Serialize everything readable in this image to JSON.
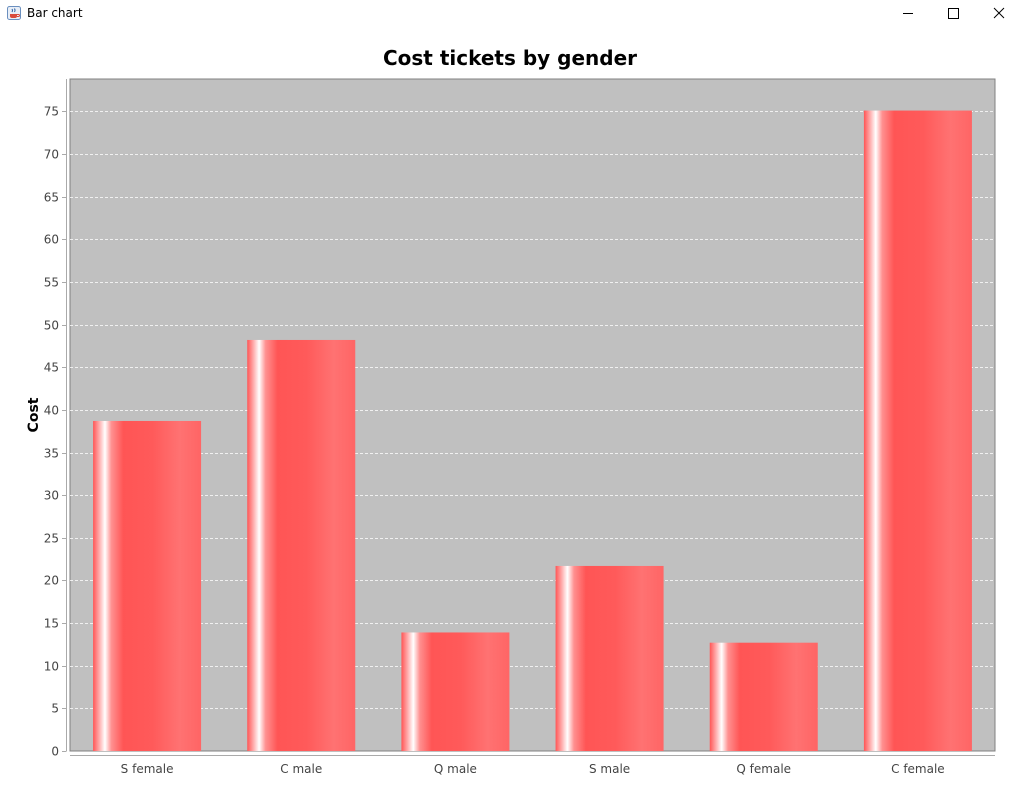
{
  "window": {
    "title": "Bar chart",
    "app_icon": "java-cup-icon",
    "controls": [
      "minimize-icon",
      "maximize-icon",
      "close-icon"
    ]
  },
  "colors": {
    "plot_background": "#c0c0c0",
    "bar": "#ff5555",
    "gridline": "#ffffff"
  },
  "chart_data": {
    "type": "bar",
    "title": "Cost tickets by gender",
    "xlabel": "",
    "ylabel": "Cost",
    "categories": [
      "S female",
      "C male",
      "Q male",
      "S male",
      "Q female",
      "C female"
    ],
    "values": [
      38.7,
      48.2,
      13.9,
      21.7,
      12.7,
      75.1
    ],
    "ylim": [
      0,
      78.8
    ],
    "yticks": [
      0,
      5,
      10,
      15,
      20,
      25,
      30,
      35,
      40,
      45,
      50,
      55,
      60,
      65,
      70,
      75
    ],
    "grid": true,
    "legend": "none"
  }
}
